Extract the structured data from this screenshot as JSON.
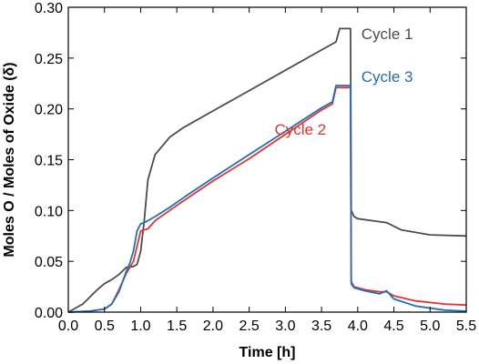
{
  "chart_data": {
    "type": "line",
    "title": "",
    "xlabel": "Time [h]",
    "ylabel": "Moles O / Moles of Oxide (δ)",
    "xlim": [
      0.0,
      5.5
    ],
    "ylim": [
      0.0,
      0.3
    ],
    "x_ticks": [
      "0.0",
      "0.5",
      "1.0",
      "1.5",
      "2.0",
      "2.5",
      "3.0",
      "3.5",
      "4.0",
      "4.5",
      "5.0",
      "5.5"
    ],
    "y_ticks": [
      "0.00",
      "0.05",
      "0.10",
      "0.15",
      "0.20",
      "0.25",
      "0.30"
    ],
    "grid": false,
    "legend": "none",
    "series": [
      {
        "name": "Cycle 1",
        "color": "#4d4d4d",
        "points": [
          [
            0.0,
            0.0
          ],
          [
            0.2,
            0.008
          ],
          [
            0.4,
            0.022
          ],
          [
            0.5,
            0.028
          ],
          [
            0.6,
            0.032
          ],
          [
            0.7,
            0.037
          ],
          [
            0.8,
            0.044
          ],
          [
            0.9,
            0.045
          ],
          [
            0.95,
            0.047
          ],
          [
            1.0,
            0.06
          ],
          [
            1.05,
            0.09
          ],
          [
            1.1,
            0.13
          ],
          [
            1.2,
            0.155
          ],
          [
            1.4,
            0.172
          ],
          [
            1.6,
            0.182
          ],
          [
            2.0,
            0.198
          ],
          [
            2.5,
            0.218
          ],
          [
            3.0,
            0.238
          ],
          [
            3.5,
            0.258
          ],
          [
            3.7,
            0.266
          ],
          [
            3.75,
            0.279
          ],
          [
            3.9,
            0.279
          ],
          [
            3.91,
            0.1
          ],
          [
            3.95,
            0.094
          ],
          [
            4.0,
            0.092
          ],
          [
            4.3,
            0.089
          ],
          [
            4.4,
            0.088
          ],
          [
            4.6,
            0.081
          ],
          [
            5.0,
            0.076
          ],
          [
            5.5,
            0.075
          ]
        ]
      },
      {
        "name": "Cycle 2",
        "color": "#e8322e",
        "points": [
          [
            0.0,
            0.0
          ],
          [
            0.3,
            0.001
          ],
          [
            0.5,
            0.003
          ],
          [
            0.6,
            0.008
          ],
          [
            0.7,
            0.022
          ],
          [
            0.8,
            0.038
          ],
          [
            0.9,
            0.05
          ],
          [
            0.95,
            0.065
          ],
          [
            1.0,
            0.08
          ],
          [
            1.05,
            0.081
          ],
          [
            1.1,
            0.082
          ],
          [
            1.2,
            0.09
          ],
          [
            1.4,
            0.1
          ],
          [
            1.6,
            0.11
          ],
          [
            2.0,
            0.129
          ],
          [
            2.5,
            0.151
          ],
          [
            3.0,
            0.175
          ],
          [
            3.5,
            0.199
          ],
          [
            3.65,
            0.205
          ],
          [
            3.7,
            0.221
          ],
          [
            3.9,
            0.221
          ],
          [
            3.91,
            0.03
          ],
          [
            3.95,
            0.025
          ],
          [
            4.1,
            0.022
          ],
          [
            4.3,
            0.02
          ],
          [
            4.4,
            0.02
          ],
          [
            4.5,
            0.016
          ],
          [
            4.8,
            0.011
          ],
          [
            5.2,
            0.008
          ],
          [
            5.5,
            0.007
          ]
        ]
      },
      {
        "name": "Cycle 3",
        "color": "#1f6fb8",
        "points": [
          [
            0.0,
            0.0
          ],
          [
            0.3,
            0.001
          ],
          [
            0.5,
            0.003
          ],
          [
            0.6,
            0.008
          ],
          [
            0.7,
            0.02
          ],
          [
            0.8,
            0.04
          ],
          [
            0.85,
            0.048
          ],
          [
            0.9,
            0.06
          ],
          [
            0.95,
            0.08
          ],
          [
            1.0,
            0.087
          ],
          [
            1.05,
            0.088
          ],
          [
            1.1,
            0.09
          ],
          [
            1.2,
            0.094
          ],
          [
            1.4,
            0.103
          ],
          [
            1.6,
            0.113
          ],
          [
            2.0,
            0.132
          ],
          [
            2.5,
            0.155
          ],
          [
            3.0,
            0.178
          ],
          [
            3.5,
            0.201
          ],
          [
            3.65,
            0.207
          ],
          [
            3.7,
            0.223
          ],
          [
            3.9,
            0.223
          ],
          [
            3.91,
            0.028
          ],
          [
            3.95,
            0.024
          ],
          [
            4.1,
            0.021
          ],
          [
            4.3,
            0.018
          ],
          [
            4.4,
            0.021
          ],
          [
            4.5,
            0.013
          ],
          [
            4.8,
            0.006
          ],
          [
            5.2,
            0.002
          ],
          [
            5.5,
            0.001
          ]
        ]
      }
    ],
    "annotations": [
      {
        "text": "Cycle 1",
        "color": "#4d4d4d",
        "x": 4.05,
        "y": 0.274
      },
      {
        "text": "Cycle 3",
        "color": "#1f6fb8",
        "x": 4.05,
        "y": 0.232
      },
      {
        "text": "Cycle 2",
        "color": "#e8322e",
        "x": 2.85,
        "y": 0.18
      }
    ]
  }
}
